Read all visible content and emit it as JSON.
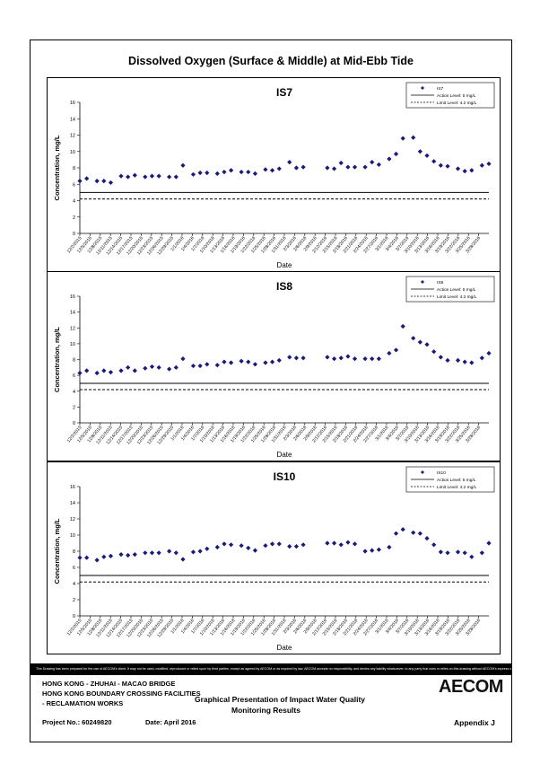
{
  "main_title": "Dissolved Oxygen (Surface & Middle) at Mid-Ebb Tide",
  "disclaimer": "This Drawing has been prepared for the use of AECOM's client. It may not be used, modified, reproduced or relied upon by third parties, except as agreed by AECOM or as required by law. AECOM accepts no responsibility, and denies any liability whatsoever, to any party that uses or relies on this drawing without AECOM's express written consent.",
  "footer": {
    "project_line1": "HONG KONG - ZHUHAI - MACAO BRIDGE",
    "project_line2": "HONG KONG BOUNDARY CROSSING FACILITIES",
    "project_line3": "- RECLAMATION WORKS",
    "drawing_title1": "Graphical Presentation of Impact Water Quality",
    "drawing_title2": "Monitoring Results",
    "project_no": "Project No.: 60249820",
    "date": "Date: April 2016",
    "appendix": "Appendix J",
    "logo": "AECOM"
  },
  "colors": {
    "marker": "#1a1a7a",
    "line": "#000000"
  },
  "chart_data": [
    {
      "type": "scatter",
      "title": "IS7",
      "xlabel": "Date",
      "ylabel": "Concentration, mg/L",
      "ylim": [
        0,
        16
      ],
      "yticks": [
        0,
        2,
        4,
        6,
        8,
        10,
        12,
        14,
        16
      ],
      "xlim": [
        "2015-12-02",
        "2016-03-30"
      ],
      "x_tick_labels": [
        "12/2/2015",
        "12/5/2015",
        "12/8/2015",
        "12/11/2015",
        "12/14/2015",
        "12/17/2015",
        "12/20/2015",
        "12/23/2015",
        "12/26/2015",
        "12/29/2015",
        "1/1/2016",
        "1/4/2016",
        "1/7/2016",
        "1/10/2016",
        "1/13/2016",
        "1/16/2016",
        "1/19/2016",
        "1/22/2016",
        "1/25/2016",
        "1/28/2016",
        "1/31/2016",
        "2/3/2016",
        "2/6/2016",
        "2/9/2016",
        "2/12/2016",
        "2/15/2016",
        "2/18/2016",
        "2/21/2016",
        "2/24/2016",
        "2/27/2016",
        "3/1/2016",
        "3/4/2016",
        "3/7/2016",
        "3/10/2016",
        "3/13/2016",
        "3/16/2016",
        "3/19/2016",
        "3/22/2016",
        "3/25/2016",
        "3/28/2016"
      ],
      "legend": [
        "IS7",
        "Action Level: 5 mg/L",
        "Limit Level: 4.2 mg/L"
      ],
      "legend_position": "top-right",
      "action_level": 5,
      "limit_level": 4.2,
      "series": [
        {
          "name": "IS7",
          "x": [
            "2015-12-02",
            "2015-12-04",
            "2015-12-07",
            "2015-12-09",
            "2015-12-11",
            "2015-12-14",
            "2015-12-16",
            "2015-12-18",
            "2015-12-21",
            "2015-12-23",
            "2015-12-25",
            "2015-12-28",
            "2015-12-30",
            "2016-01-01",
            "2016-01-04",
            "2016-01-06",
            "2016-01-08",
            "2016-01-11",
            "2016-01-13",
            "2016-01-15",
            "2016-01-18",
            "2016-01-20",
            "2016-01-22",
            "2016-01-25",
            "2016-01-27",
            "2016-01-29",
            "2016-02-01",
            "2016-02-03",
            "2016-02-05",
            "2016-02-12",
            "2016-02-14",
            "2016-02-16",
            "2016-02-18",
            "2016-02-20",
            "2016-02-23",
            "2016-02-25",
            "2016-02-27",
            "2016-03-01",
            "2016-03-03",
            "2016-03-05",
            "2016-03-08",
            "2016-03-10",
            "2016-03-12",
            "2016-03-14",
            "2016-03-16",
            "2016-03-18",
            "2016-03-21",
            "2016-03-23",
            "2016-03-25",
            "2016-03-28",
            "2016-03-30"
          ],
          "values": [
            6.4,
            6.7,
            6.4,
            6.4,
            6.2,
            7.0,
            6.9,
            7.1,
            6.9,
            7.0,
            7.0,
            6.9,
            6.9,
            8.3,
            7.2,
            7.4,
            7.4,
            7.3,
            7.5,
            7.7,
            7.5,
            7.5,
            7.3,
            7.8,
            7.7,
            7.9,
            8.7,
            8.0,
            8.1,
            8.0,
            7.9,
            8.6,
            8.1,
            8.1,
            8.1,
            8.7,
            8.4,
            9.1,
            9.7,
            11.6,
            11.7,
            10.0,
            9.5,
            8.8,
            8.3,
            8.2,
            7.9,
            7.6,
            7.7,
            8.3,
            8.5
          ]
        }
      ]
    },
    {
      "type": "scatter",
      "title": "IS8",
      "xlabel": "Date",
      "ylabel": "Concentration, mg/L",
      "ylim": [
        0,
        16
      ],
      "yticks": [
        0,
        2,
        4,
        6,
        8,
        10,
        12,
        14,
        16
      ],
      "xlim": [
        "2015-12-02",
        "2016-03-30"
      ],
      "x_tick_labels": [
        "12/2/2015",
        "12/5/2015",
        "12/8/2015",
        "12/11/2015",
        "12/14/2015",
        "12/17/2015",
        "12/20/2015",
        "12/23/2015",
        "12/26/2015",
        "12/29/2015",
        "1/1/2016",
        "1/4/2016",
        "1/7/2016",
        "1/10/2016",
        "1/13/2016",
        "1/16/2016",
        "1/19/2016",
        "1/22/2016",
        "1/25/2016",
        "1/28/2016",
        "1/31/2016",
        "2/3/2016",
        "2/6/2016",
        "2/9/2016",
        "2/12/2016",
        "2/15/2016",
        "2/18/2016",
        "2/21/2016",
        "2/24/2016",
        "2/27/2016",
        "3/1/2016",
        "3/4/2016",
        "3/7/2016",
        "3/10/2016",
        "3/13/2016",
        "3/16/2016",
        "3/19/2016",
        "3/22/2016",
        "3/25/2016",
        "3/28/2016"
      ],
      "legend": [
        "IS8",
        "Action Level: 5 mg/L",
        "Limit Level: 4.2 mg/L"
      ],
      "legend_position": "top-right",
      "action_level": 5,
      "limit_level": 4.2,
      "series": [
        {
          "name": "IS8",
          "x": [
            "2015-12-02",
            "2015-12-04",
            "2015-12-07",
            "2015-12-09",
            "2015-12-11",
            "2015-12-14",
            "2015-12-16",
            "2015-12-18",
            "2015-12-21",
            "2015-12-23",
            "2015-12-25",
            "2015-12-28",
            "2015-12-30",
            "2016-01-01",
            "2016-01-04",
            "2016-01-06",
            "2016-01-08",
            "2016-01-11",
            "2016-01-13",
            "2016-01-15",
            "2016-01-18",
            "2016-01-20",
            "2016-01-22",
            "2016-01-25",
            "2016-01-27",
            "2016-01-29",
            "2016-02-01",
            "2016-02-03",
            "2016-02-05",
            "2016-02-12",
            "2016-02-14",
            "2016-02-16",
            "2016-02-18",
            "2016-02-20",
            "2016-02-23",
            "2016-02-25",
            "2016-02-27",
            "2016-03-01",
            "2016-03-03",
            "2016-03-05",
            "2016-03-08",
            "2016-03-10",
            "2016-03-12",
            "2016-03-14",
            "2016-03-16",
            "2016-03-18",
            "2016-03-21",
            "2016-03-23",
            "2016-03-25",
            "2016-03-28",
            "2016-03-30"
          ],
          "values": [
            6.3,
            6.6,
            6.3,
            6.6,
            6.4,
            6.6,
            7.0,
            6.6,
            6.9,
            7.1,
            7.0,
            6.8,
            7.0,
            8.1,
            7.2,
            7.2,
            7.4,
            7.3,
            7.7,
            7.6,
            7.8,
            7.7,
            7.4,
            7.6,
            7.7,
            7.9,
            8.3,
            8.2,
            8.2,
            8.3,
            8.1,
            8.2,
            8.4,
            8.1,
            8.1,
            8.1,
            8.1,
            8.8,
            9.2,
            12.2,
            10.7,
            10.2,
            9.9,
            9.0,
            8.3,
            7.9,
            7.9,
            7.7,
            7.6,
            8.2,
            8.8
          ]
        }
      ]
    },
    {
      "type": "scatter",
      "title": "IS10",
      "xlabel": "Date",
      "ylabel": "Concentration, mg/L",
      "ylim": [
        0,
        16
      ],
      "yticks": [
        0,
        2,
        4,
        6,
        8,
        10,
        12,
        14,
        16
      ],
      "xlim": [
        "2015-12-02",
        "2016-03-30"
      ],
      "x_tick_labels": [
        "12/2/2015",
        "12/5/2015",
        "12/8/2015",
        "12/11/2015",
        "12/14/2015",
        "12/17/2015",
        "12/20/2015",
        "12/23/2015",
        "12/26/2015",
        "12/29/2015",
        "1/1/2016",
        "1/4/2016",
        "1/7/2016",
        "1/10/2016",
        "1/13/2016",
        "1/16/2016",
        "1/19/2016",
        "1/22/2016",
        "1/25/2016",
        "1/28/2016",
        "1/31/2016",
        "2/3/2016",
        "2/6/2016",
        "2/9/2016",
        "2/12/2016",
        "2/15/2016",
        "2/18/2016",
        "2/21/2016",
        "2/24/2016",
        "2/27/2016",
        "3/1/2016",
        "3/4/2016",
        "3/7/2016",
        "3/10/2016",
        "3/13/2016",
        "3/16/2016",
        "3/19/2016",
        "3/22/2016",
        "3/25/2016",
        "3/28/2016"
      ],
      "legend": [
        "IS10",
        "Action Level: 5 mg/L",
        "Limit Level: 4.2 mg/L"
      ],
      "legend_position": "top-right",
      "action_level": 5,
      "limit_level": 4.2,
      "series": [
        {
          "name": "IS10",
          "x": [
            "2015-12-02",
            "2015-12-04",
            "2015-12-07",
            "2015-12-09",
            "2015-12-11",
            "2015-12-14",
            "2015-12-16",
            "2015-12-18",
            "2015-12-21",
            "2015-12-23",
            "2015-12-25",
            "2015-12-28",
            "2015-12-30",
            "2016-01-01",
            "2016-01-04",
            "2016-01-06",
            "2016-01-08",
            "2016-01-11",
            "2016-01-13",
            "2016-01-15",
            "2016-01-18",
            "2016-01-20",
            "2016-01-22",
            "2016-01-25",
            "2016-01-27",
            "2016-01-29",
            "2016-02-01",
            "2016-02-03",
            "2016-02-05",
            "2016-02-12",
            "2016-02-14",
            "2016-02-16",
            "2016-02-18",
            "2016-02-20",
            "2016-02-23",
            "2016-02-25",
            "2016-02-27",
            "2016-03-01",
            "2016-03-03",
            "2016-03-05",
            "2016-03-08",
            "2016-03-10",
            "2016-03-12",
            "2016-03-14",
            "2016-03-16",
            "2016-03-18",
            "2016-03-21",
            "2016-03-23",
            "2016-03-25",
            "2016-03-28",
            "2016-03-30"
          ],
          "values": [
            7.2,
            7.2,
            6.9,
            7.3,
            7.4,
            7.6,
            7.5,
            7.6,
            7.8,
            7.8,
            7.8,
            8.0,
            7.8,
            7.0,
            7.9,
            8.0,
            8.3,
            8.5,
            8.9,
            8.8,
            8.7,
            8.4,
            8.1,
            8.7,
            8.9,
            8.9,
            8.6,
            8.6,
            8.8,
            9.0,
            9.0,
            8.8,
            9.1,
            8.9,
            8.0,
            8.1,
            8.2,
            8.5,
            10.2,
            10.7,
            10.3,
            10.2,
            9.6,
            8.8,
            7.9,
            7.8,
            7.9,
            7.8,
            7.3,
            7.8,
            9.0
          ]
        }
      ]
    }
  ]
}
